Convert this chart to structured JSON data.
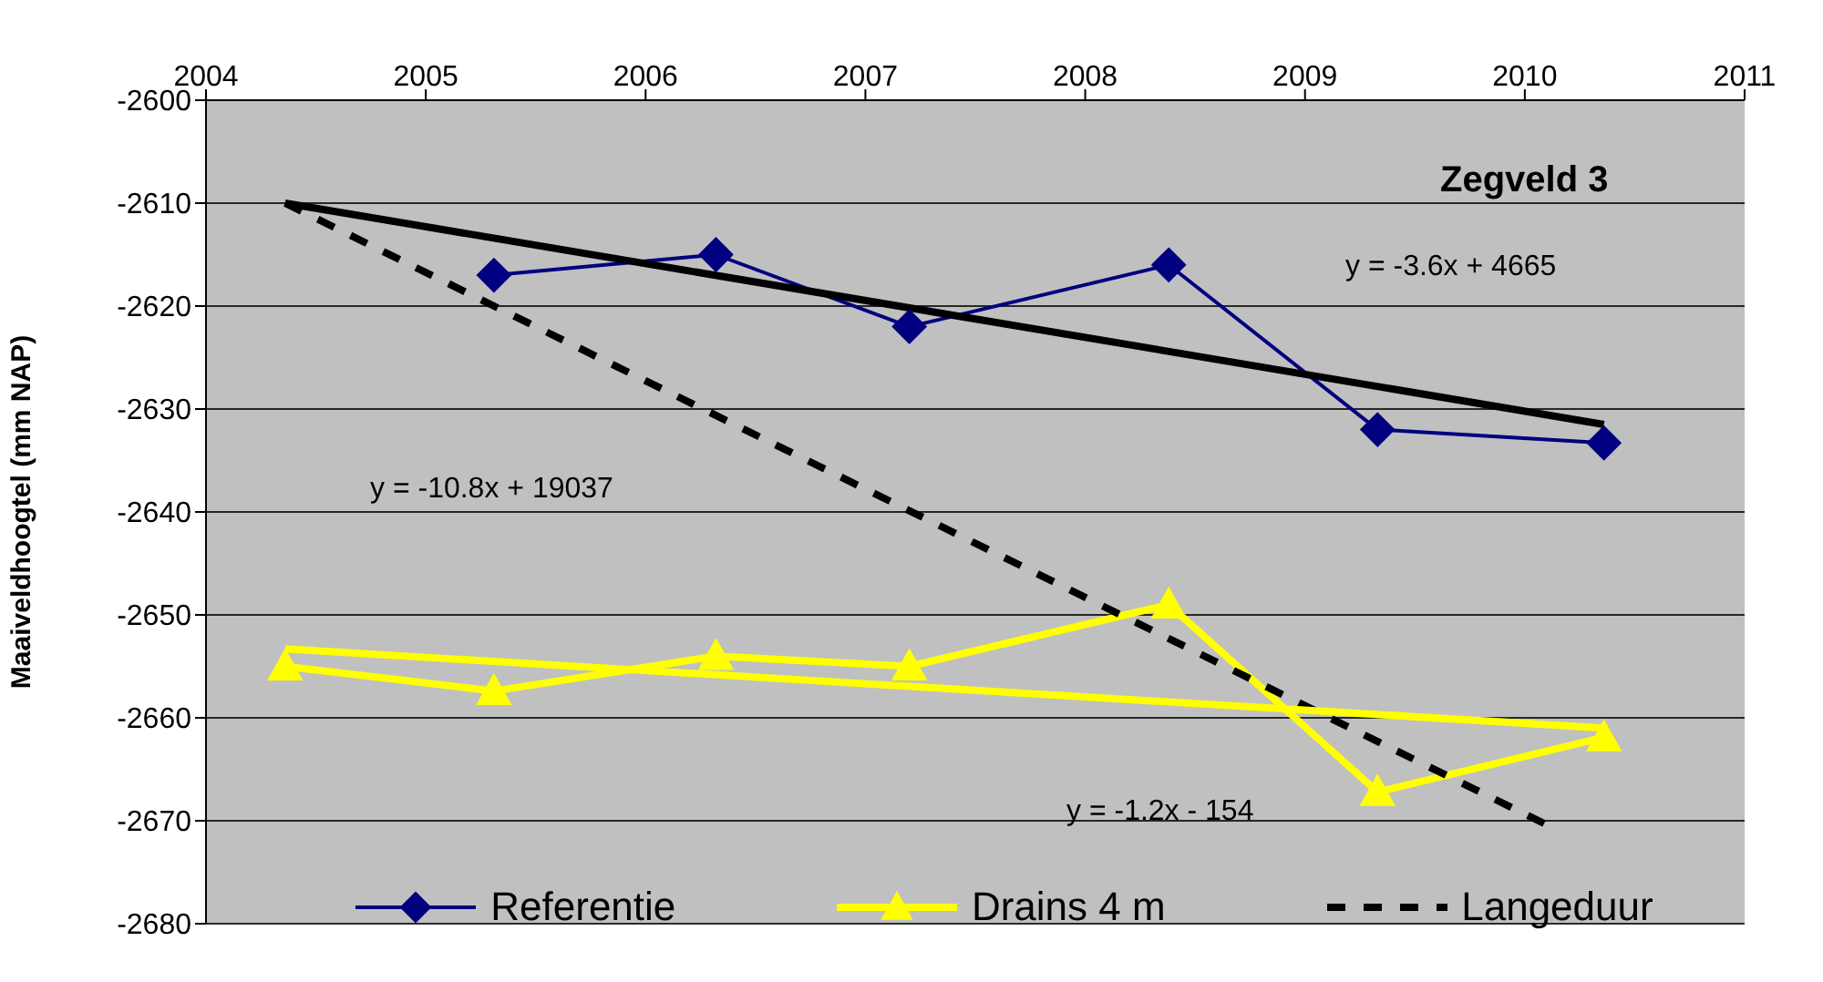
{
  "chart_data": {
    "type": "line",
    "title": "Zegveld 3",
    "ylabel": "Maaiveldhoogtel (mm NAP)",
    "xlim": [
      2004,
      2011
    ],
    "xticks": [
      2004,
      2005,
      2006,
      2007,
      2008,
      2009,
      2010,
      2011
    ],
    "ylim": [
      -2680,
      -2600
    ],
    "yticks": [
      -2680,
      -2670,
      -2660,
      -2650,
      -2640,
      -2630,
      -2620,
      -2610,
      -2600
    ],
    "grid": "y",
    "legend": "bottom",
    "series": [
      {
        "name": "Referentie",
        "color": "#000080",
        "marker": "diamond",
        "x": [
          2005.31,
          2006.32,
          2007.2,
          2008.38,
          2009.33,
          2010.36
        ],
        "values": [
          -2617,
          -2615,
          -2622,
          -2616,
          -2632,
          -2633.3
        ]
      },
      {
        "name": "Drains 4 m",
        "color": "#ffff00",
        "marker": "triangle",
        "x": [
          2004.36,
          2005.31,
          2006.32,
          2007.2,
          2008.38,
          2009.33,
          2010.36
        ],
        "values": [
          -2655,
          -2657.4,
          -2654,
          -2655,
          -2649,
          -2667.2,
          -2661.9
        ]
      },
      {
        "name": "Langeduur",
        "color": "#000000",
        "marker": "none",
        "line_style": "dashed",
        "x": [
          2004.36,
          2010.11
        ],
        "values": [
          -2610,
          -2670.5
        ]
      },
      {
        "color": "#000000",
        "marker": "none",
        "line_style": "solid",
        "x": [
          2004.36,
          2010.36
        ],
        "values": [
          -2610,
          -2631.5
        ]
      },
      {
        "color": "#ffff00",
        "marker": "none",
        "line_style": "solid",
        "x": [
          2004.36,
          2010.36
        ],
        "values": [
          -2653.3,
          -2661
        ]
      }
    ],
    "annotations": [
      "y = -3.6x + 4665",
      "y = -10.8x + 19037",
      "y = -1.2x - 154"
    ]
  }
}
